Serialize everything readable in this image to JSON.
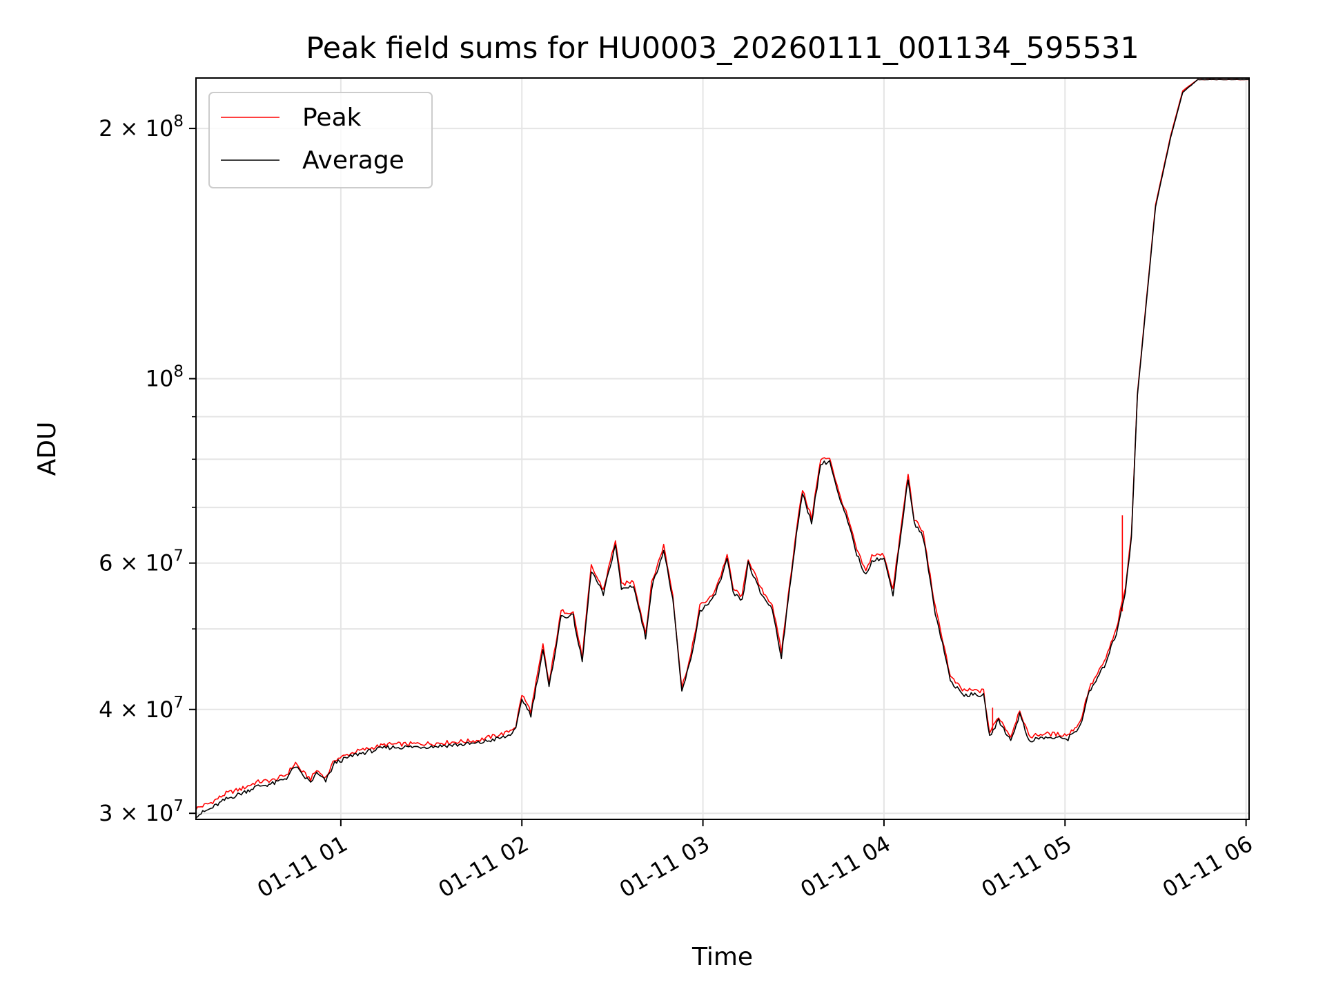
{
  "chart_data": {
    "type": "line",
    "title": "Peak field sums for HU0003_20260111_001134_595531",
    "xlabel": "Time",
    "ylabel": "ADU",
    "y_scale": "log",
    "grid": true,
    "legend_position": "top-left",
    "xlim": [
      "2026-01-11 00:12",
      "2026-01-11 06:01"
    ],
    "ylim": [
      29500000,
      230000000
    ],
    "x_ticks": [
      "01-11 01",
      "01-11 02",
      "01-11 03",
      "01-11 04",
      "01-11 05",
      "01-11 06"
    ],
    "y_ticks_major": [
      {
        "value": 30000000,
        "label": "3 × 10",
        "exp": "7"
      },
      {
        "value": 40000000,
        "label": "4 × 10",
        "exp": "7"
      },
      {
        "value": 60000000,
        "label": "6 × 10",
        "exp": "7"
      },
      {
        "value": 100000000,
        "label": "10",
        "exp": "8"
      },
      {
        "value": 200000000,
        "label": "2 × 10",
        "exp": "8"
      }
    ],
    "y_ticks_minor": [
      50000000,
      70000000,
      80000000,
      90000000
    ],
    "series": [
      {
        "name": "Peak",
        "color": "#ff0000",
        "points": [
          [
            "2026-01-11 00:12",
            30400000
          ],
          [
            "2026-01-11 00:17",
            30900000
          ],
          [
            "2026-01-11 00:22",
            31700000
          ],
          [
            "2026-01-11 00:27",
            32100000
          ],
          [
            "2026-01-11 00:32",
            32700000
          ],
          [
            "2026-01-11 00:38",
            32900000
          ],
          [
            "2026-01-11 00:42",
            33400000
          ],
          [
            "2026-01-11 00:45",
            34500000
          ],
          [
            "2026-01-11 00:47",
            33700000
          ],
          [
            "2026-01-11 00:50",
            33000000
          ],
          [
            "2026-01-11 00:52",
            33800000
          ],
          [
            "2026-01-11 00:55",
            33100000
          ],
          [
            "2026-01-11 00:58",
            34800000
          ],
          [
            "2026-01-11 01:05",
            35600000
          ],
          [
            "2026-01-11 01:15",
            36300000
          ],
          [
            "2026-01-11 01:30",
            36400000
          ],
          [
            "2026-01-11 01:45",
            36700000
          ],
          [
            "2026-01-11 01:55",
            37500000
          ],
          [
            "2026-01-11 01:58",
            38200000
          ],
          [
            "2026-01-11 02:00",
            41700000
          ],
          [
            "2026-01-11 02:03",
            39800000
          ],
          [
            "2026-01-11 02:07",
            47800000
          ],
          [
            "2026-01-11 02:09",
            43000000
          ],
          [
            "2026-01-11 02:13",
            52500000
          ],
          [
            "2026-01-11 02:17",
            52400000
          ],
          [
            "2026-01-11 02:20",
            46200000
          ],
          [
            "2026-01-11 02:23",
            59500000
          ],
          [
            "2026-01-11 02:27",
            55700000
          ],
          [
            "2026-01-11 02:31",
            64000000
          ],
          [
            "2026-01-11 02:33",
            56500000
          ],
          [
            "2026-01-11 02:37",
            57100000
          ],
          [
            "2026-01-11 02:41",
            49400000
          ],
          [
            "2026-01-11 02:43",
            56700000
          ],
          [
            "2026-01-11 02:47",
            63000000
          ],
          [
            "2026-01-11 02:50",
            55000000
          ],
          [
            "2026-01-11 02:53",
            42500000
          ],
          [
            "2026-01-11 02:56",
            46500000
          ],
          [
            "2026-01-11 02:59",
            53300000
          ],
          [
            "2026-01-11 03:03",
            54700000
          ],
          [
            "2026-01-11 03:06",
            58100000
          ],
          [
            "2026-01-11 03:08",
            61400000
          ],
          [
            "2026-01-11 03:10",
            55900000
          ],
          [
            "2026-01-11 03:13",
            54700000
          ],
          [
            "2026-01-11 03:15",
            60800000
          ],
          [
            "2026-01-11 03:19",
            56000000
          ],
          [
            "2026-01-11 03:23",
            53500000
          ],
          [
            "2026-01-11 03:26",
            46900000
          ],
          [
            "2026-01-11 03:31",
            66000000
          ],
          [
            "2026-01-11 03:33",
            73500000
          ],
          [
            "2026-01-11 03:36",
            68000000
          ],
          [
            "2026-01-11 03:39",
            79800000
          ],
          [
            "2026-01-11 03:42",
            80500000
          ],
          [
            "2026-01-11 03:45",
            73000000
          ],
          [
            "2026-01-11 03:48",
            68100000
          ],
          [
            "2026-01-11 03:51",
            62200000
          ],
          [
            "2026-01-11 03:54",
            58600000
          ],
          [
            "2026-01-11 03:56",
            61300000
          ],
          [
            "2026-01-11 04:00",
            61400000
          ],
          [
            "2026-01-11 04:03",
            55800000
          ],
          [
            "2026-01-11 04:08",
            76800000
          ],
          [
            "2026-01-11 04:10",
            67800000
          ],
          [
            "2026-01-11 04:13",
            65300000
          ],
          [
            "2026-01-11 04:17",
            53000000
          ],
          [
            "2026-01-11 04:20",
            47600000
          ],
          [
            "2026-01-11 04:22",
            43800000
          ],
          [
            "2026-01-11 04:26",
            42200000
          ],
          [
            "2026-01-11 04:33",
            42100000
          ],
          [
            "2026-01-11 04:35",
            37500000
          ],
          [
            "2026-01-11 04:38",
            39200000
          ],
          [
            "2026-01-11 04:42",
            37100000
          ],
          [
            "2026-01-11 04:45",
            40000000
          ],
          [
            "2026-01-11 04:48",
            37100000
          ],
          [
            "2026-01-11 04:53",
            37400000
          ],
          [
            "2026-01-11 05:01",
            37300000
          ],
          [
            "2026-01-11 05:05",
            38600000
          ],
          [
            "2026-01-11 05:08",
            42400000
          ],
          [
            "2026-01-11 05:13",
            45600000
          ],
          [
            "2026-01-11 05:17",
            49900000
          ],
          [
            "2026-01-11 05:20",
            56000000
          ],
          [
            "2026-01-11 05:22",
            65000000
          ],
          [
            "2026-01-11 05:24",
            96000000
          ],
          [
            "2026-01-11 05:30",
            162000000
          ],
          [
            "2026-01-11 05:35",
            196000000
          ],
          [
            "2026-01-11 05:39",
            222000000
          ],
          [
            "2026-01-11 05:44",
            229000000
          ],
          [
            "2026-01-11 06:01",
            229000000
          ]
        ],
        "spikes": [
          {
            "x": "2026-01-11 05:19",
            "from": 52500000,
            "to": 68500000
          },
          {
            "x": "2026-01-11 04:36",
            "from": 37500000,
            "to": 40200000
          }
        ]
      },
      {
        "name": "Average",
        "color": "#000000",
        "points": [
          [
            "2026-01-11 00:12",
            29800000
          ],
          [
            "2026-01-11 00:17",
            30400000
          ],
          [
            "2026-01-11 00:22",
            31200000
          ],
          [
            "2026-01-11 00:27",
            31700000
          ],
          [
            "2026-01-11 00:32",
            32300000
          ],
          [
            "2026-01-11 00:38",
            32600000
          ],
          [
            "2026-01-11 00:42",
            33100000
          ],
          [
            "2026-01-11 00:45",
            34200000
          ],
          [
            "2026-01-11 00:47",
            33400000
          ],
          [
            "2026-01-11 00:50",
            32700000
          ],
          [
            "2026-01-11 00:52",
            33500000
          ],
          [
            "2026-01-11 00:55",
            32800000
          ],
          [
            "2026-01-11 00:58",
            34500000
          ],
          [
            "2026-01-11 01:05",
            35300000
          ],
          [
            "2026-01-11 01:15",
            36000000
          ],
          [
            "2026-01-11 01:30",
            36100000
          ],
          [
            "2026-01-11 01:45",
            36400000
          ],
          [
            "2026-01-11 01:55",
            37100000
          ],
          [
            "2026-01-11 01:58",
            37800000
          ],
          [
            "2026-01-11 02:00",
            41200000
          ],
          [
            "2026-01-11 02:03",
            39400000
          ],
          [
            "2026-01-11 02:07",
            47200000
          ],
          [
            "2026-01-11 02:09",
            42500000
          ],
          [
            "2026-01-11 02:13",
            51800000
          ],
          [
            "2026-01-11 02:17",
            51800000
          ],
          [
            "2026-01-11 02:20",
            45600000
          ],
          [
            "2026-01-11 02:23",
            58800000
          ],
          [
            "2026-01-11 02:27",
            55000000
          ],
          [
            "2026-01-11 02:31",
            63200000
          ],
          [
            "2026-01-11 02:33",
            55800000
          ],
          [
            "2026-01-11 02:37",
            56400000
          ],
          [
            "2026-01-11 02:41",
            48800000
          ],
          [
            "2026-01-11 02:43",
            56000000
          ],
          [
            "2026-01-11 02:47",
            62200000
          ],
          [
            "2026-01-11 02:50",
            54300000
          ],
          [
            "2026-01-11 02:53",
            42000000
          ],
          [
            "2026-01-11 02:56",
            45900000
          ],
          [
            "2026-01-11 02:59",
            52600000
          ],
          [
            "2026-01-11 03:03",
            54000000
          ],
          [
            "2026-01-11 03:06",
            57400000
          ],
          [
            "2026-01-11 03:08",
            60600000
          ],
          [
            "2026-01-11 03:10",
            55200000
          ],
          [
            "2026-01-11 03:13",
            54000000
          ],
          [
            "2026-01-11 03:15",
            60000000
          ],
          [
            "2026-01-11 03:19",
            55300000
          ],
          [
            "2026-01-11 03:23",
            52800000
          ],
          [
            "2026-01-11 03:26",
            46300000
          ],
          [
            "2026-01-11 03:31",
            65200000
          ],
          [
            "2026-01-11 03:33",
            72600000
          ],
          [
            "2026-01-11 03:36",
            67200000
          ],
          [
            "2026-01-11 03:39",
            78900000
          ],
          [
            "2026-01-11 03:42",
            79600000
          ],
          [
            "2026-01-11 03:45",
            72100000
          ],
          [
            "2026-01-11 03:48",
            67300000
          ],
          [
            "2026-01-11 03:51",
            61500000
          ],
          [
            "2026-01-11 03:54",
            57900000
          ],
          [
            "2026-01-11 03:56",
            60600000
          ],
          [
            "2026-01-11 04:00",
            60700000
          ],
          [
            "2026-01-11 04:03",
            55100000
          ],
          [
            "2026-01-11 04:08",
            75900000
          ],
          [
            "2026-01-11 04:10",
            67000000
          ],
          [
            "2026-01-11 04:13",
            64500000
          ],
          [
            "2026-01-11 04:17",
            52300000
          ],
          [
            "2026-01-11 04:20",
            47000000
          ],
          [
            "2026-01-11 04:22",
            43300000
          ],
          [
            "2026-01-11 04:26",
            41700000
          ],
          [
            "2026-01-11 04:33",
            41600000
          ],
          [
            "2026-01-11 04:35",
            37100000
          ],
          [
            "2026-01-11 04:38",
            38800000
          ],
          [
            "2026-01-11 04:42",
            36700000
          ],
          [
            "2026-01-11 04:45",
            39500000
          ],
          [
            "2026-01-11 04:48",
            36700000
          ],
          [
            "2026-01-11 04:53",
            37000000
          ],
          [
            "2026-01-11 05:01",
            36900000
          ],
          [
            "2026-01-11 05:05",
            38200000
          ],
          [
            "2026-01-11 05:08",
            41900000
          ],
          [
            "2026-01-11 05:13",
            45100000
          ],
          [
            "2026-01-11 05:17",
            49400000
          ],
          [
            "2026-01-11 05:20",
            55500000
          ],
          [
            "2026-01-11 05:22",
            64500000
          ],
          [
            "2026-01-11 05:24",
            95500000
          ],
          [
            "2026-01-11 05:30",
            161000000
          ],
          [
            "2026-01-11 05:35",
            195000000
          ],
          [
            "2026-01-11 05:39",
            221000000
          ],
          [
            "2026-01-11 05:44",
            229000000
          ],
          [
            "2026-01-11 06:01",
            229000000
          ]
        ]
      }
    ]
  }
}
